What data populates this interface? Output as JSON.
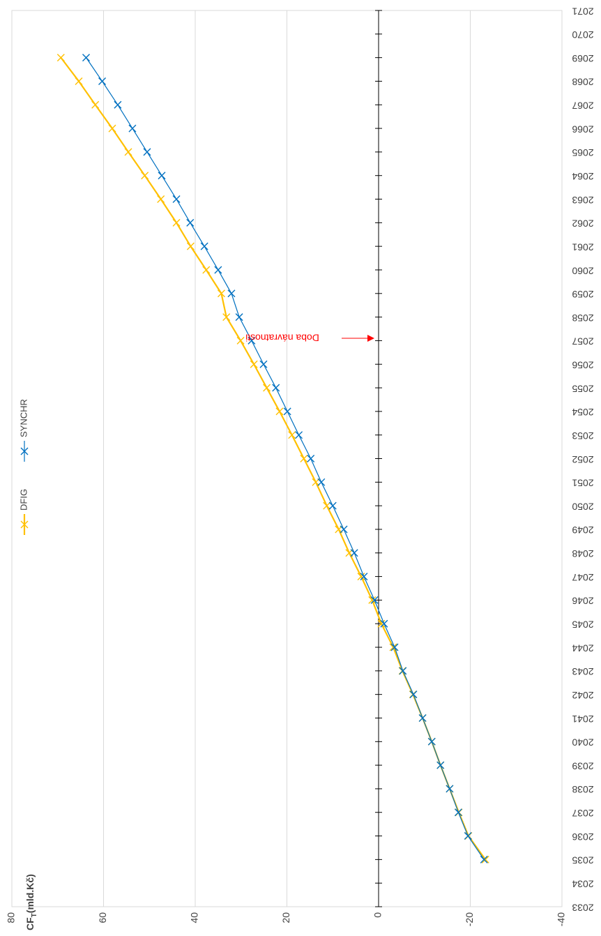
{
  "chart_data": {
    "type": "line",
    "y_label": {
      "main": "CF",
      "sub": "T",
      "unit": "(mld.Kč)"
    },
    "annotation": "Doba návratnosti",
    "x": [
      2035,
      2036,
      2037,
      2038,
      2039,
      2040,
      2041,
      2042,
      2043,
      2044,
      2045,
      2046,
      2047,
      2048,
      2049,
      2050,
      2051,
      2052,
      2053,
      2054,
      2055,
      2056,
      2057,
      2058,
      2059,
      2060,
      2061,
      2062,
      2063,
      2064,
      2065,
      2066,
      2067,
      2068,
      2069
    ],
    "series": [
      {
        "name": "DFIG",
        "color": "#ffc000",
        "values": [
          -23.3,
          -19.6,
          -17.5,
          -15.5,
          -13.5,
          -11.6,
          -9.6,
          -7.5,
          -5.2,
          -3.2,
          -0.6,
          1.4,
          3.8,
          6.4,
          8.7,
          11.3,
          13.7,
          16.3,
          18.9,
          21.6,
          24.4,
          27.2,
          30.1,
          33.2,
          34.3,
          37.6,
          41,
          44.1,
          47.5,
          51,
          54.6,
          58.1,
          61.8,
          65.4,
          69.3
        ]
      },
      {
        "name": "SYNCHR",
        "color": "#0070c0",
        "values": [
          -23,
          -19.5,
          -17.4,
          -15.5,
          -13.5,
          -11.6,
          -9.6,
          -7.6,
          -5.3,
          -3.5,
          -1.2,
          0.9,
          3.2,
          5.3,
          7.6,
          10,
          12.5,
          14.8,
          17.4,
          19.9,
          22.4,
          25.1,
          27.7,
          30.4,
          32.1,
          35,
          38,
          41.1,
          44.1,
          47.3,
          50.5,
          53.7,
          56.9,
          60.3,
          63.8
        ]
      }
    ],
    "xlim": [
      2033,
      2071
    ],
    "xticks": [
      2033,
      2034,
      2035,
      2036,
      2037,
      2038,
      2039,
      2040,
      2041,
      2042,
      2043,
      2044,
      2045,
      2046,
      2047,
      2048,
      2049,
      2050,
      2051,
      2052,
      2053,
      2054,
      2055,
      2056,
      2057,
      2058,
      2059,
      2060,
      2061,
      2062,
      2063,
      2064,
      2065,
      2066,
      2067,
      2068,
      2069,
      2070,
      2071
    ],
    "ylim": [
      -40,
      80
    ],
    "yticks": [
      -40,
      -20,
      0,
      20,
      40,
      60,
      80
    ],
    "grid": true,
    "legend": "top"
  }
}
